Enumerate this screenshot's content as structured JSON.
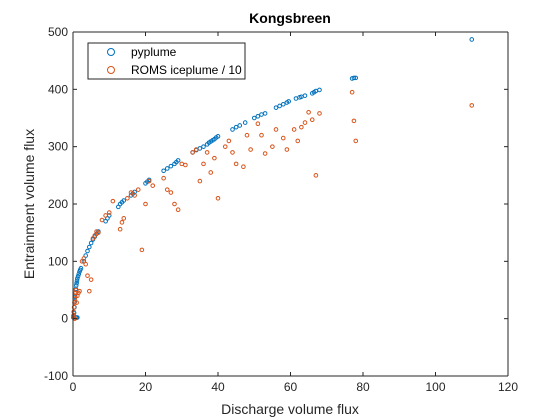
{
  "chart_data": {
    "type": "scatter",
    "title": "Kongsbreen",
    "xlabel": "Discharge volume flux",
    "ylabel": "Entrainment volume flux",
    "xlim": [
      0,
      120
    ],
    "ylim": [
      -100,
      500
    ],
    "xticks": [
      0,
      20,
      40,
      60,
      80,
      100,
      120
    ],
    "yticks": [
      -100,
      0,
      100,
      200,
      300,
      400,
      500
    ],
    "xtick_labels": [
      "0",
      "20",
      "40",
      "60",
      "80",
      "100",
      "120"
    ],
    "ytick_labels": [
      "-100",
      "0",
      "100",
      "200",
      "300",
      "400",
      "500"
    ],
    "grid": false,
    "legend_position": "top-left",
    "series": [
      {
        "name": "pyplume",
        "color": "#0072BD",
        "marker": "circle",
        "points": [
          [
            0.1,
            2
          ],
          [
            0.2,
            5
          ],
          [
            0.3,
            10
          ],
          [
            0.4,
            20
          ],
          [
            0.5,
            30
          ],
          [
            0.6,
            38
          ],
          [
            0.7,
            45
          ],
          [
            0.8,
            52
          ],
          [
            0.9,
            58
          ],
          [
            1.0,
            62
          ],
          [
            1.1,
            66
          ],
          [
            1.2,
            70
          ],
          [
            1.4,
            74
          ],
          [
            1.6,
            78
          ],
          [
            1.8,
            82
          ],
          [
            2.0,
            85
          ],
          [
            2.2,
            88
          ],
          [
            0.8,
            2
          ],
          [
            1.0,
            2
          ],
          [
            1.2,
            2
          ],
          [
            3.0,
            100
          ],
          [
            3.5,
            110
          ],
          [
            4.0,
            118
          ],
          [
            4.5,
            125
          ],
          [
            5.0,
            132
          ],
          [
            5.5,
            138
          ],
          [
            6.0,
            143
          ],
          [
            6.5,
            148
          ],
          [
            7.0,
            152
          ],
          [
            9.0,
            170
          ],
          [
            9.5,
            175
          ],
          [
            10.0,
            180
          ],
          [
            12.5,
            195
          ],
          [
            13.0,
            200
          ],
          [
            13.5,
            203
          ],
          [
            14.0,
            206
          ],
          [
            16.0,
            215
          ],
          [
            16.5,
            218
          ],
          [
            17.0,
            221
          ],
          [
            20.0,
            236
          ],
          [
            20.5,
            239
          ],
          [
            21.0,
            242
          ],
          [
            25.0,
            258
          ],
          [
            26.0,
            262
          ],
          [
            27.0,
            266
          ],
          [
            28.0,
            270
          ],
          [
            28.5,
            273
          ],
          [
            29.0,
            276
          ],
          [
            33.0,
            290
          ],
          [
            34.0,
            294
          ],
          [
            35.0,
            297
          ],
          [
            36.0,
            300
          ],
          [
            37.0,
            304
          ],
          [
            37.5,
            307
          ],
          [
            38.0,
            309
          ],
          [
            38.5,
            311
          ],
          [
            39.0,
            313
          ],
          [
            39.5,
            316
          ],
          [
            40.0,
            318
          ],
          [
            44.0,
            330
          ],
          [
            45.0,
            334
          ],
          [
            46.0,
            337
          ],
          [
            47.5,
            342
          ],
          [
            50.0,
            350
          ],
          [
            51.0,
            353
          ],
          [
            52.0,
            356
          ],
          [
            53.0,
            358
          ],
          [
            56.0,
            368
          ],
          [
            57.0,
            371
          ],
          [
            58.0,
            374
          ],
          [
            59.0,
            377
          ],
          [
            59.5,
            379
          ],
          [
            61.5,
            384
          ],
          [
            62.5,
            386
          ],
          [
            63.0,
            387
          ],
          [
            64.0,
            389
          ],
          [
            66.0,
            393
          ],
          [
            66.5,
            395
          ],
          [
            67.0,
            397
          ],
          [
            68.0,
            399
          ],
          [
            77.0,
            419
          ],
          [
            77.5,
            420
          ],
          [
            78.0,
            420
          ],
          [
            110.0,
            487
          ]
        ]
      },
      {
        "name": "ROMS iceplume / 10",
        "color": "#D95319",
        "marker": "circle",
        "points": [
          [
            0.1,
            5
          ],
          [
            0.2,
            12
          ],
          [
            0.3,
            20
          ],
          [
            0.4,
            28
          ],
          [
            0.5,
            35
          ],
          [
            0.6,
            40
          ],
          [
            0.7,
            45
          ],
          [
            0.8,
            50
          ],
          [
            0.3,
            2
          ],
          [
            0.5,
            0
          ],
          [
            1.0,
            28
          ],
          [
            1.2,
            40
          ],
          [
            1.5,
            45
          ],
          [
            1.8,
            48
          ],
          [
            2.5,
            100
          ],
          [
            3.0,
            105
          ],
          [
            3.5,
            95
          ],
          [
            4.0,
            75
          ],
          [
            4.5,
            48
          ],
          [
            5.0,
            68
          ],
          [
            5.5,
            140
          ],
          [
            6.0,
            145
          ],
          [
            6.5,
            152
          ],
          [
            7.0,
            150
          ],
          [
            8.0,
            172
          ],
          [
            9.0,
            180
          ],
          [
            10.0,
            185
          ],
          [
            11.0,
            205
          ],
          [
            13.0,
            156
          ],
          [
            13.5,
            168
          ],
          [
            14.0,
            175
          ],
          [
            15.0,
            210
          ],
          [
            16.0,
            220
          ],
          [
            17.0,
            215
          ],
          [
            18.0,
            225
          ],
          [
            19.0,
            120
          ],
          [
            20.0,
            200
          ],
          [
            21.0,
            240
          ],
          [
            22.0,
            232
          ],
          [
            25.0,
            245
          ],
          [
            26.0,
            225
          ],
          [
            27.0,
            220
          ],
          [
            28.0,
            200
          ],
          [
            29.0,
            190
          ],
          [
            30.0,
            270
          ],
          [
            31.0,
            268
          ],
          [
            33.0,
            290
          ],
          [
            34.0,
            295
          ],
          [
            35.0,
            240
          ],
          [
            36.0,
            270
          ],
          [
            37.0,
            290
          ],
          [
            38.0,
            255
          ],
          [
            39.0,
            280
          ],
          [
            40.0,
            210
          ],
          [
            42.0,
            300
          ],
          [
            43.0,
            310
          ],
          [
            44.0,
            290
          ],
          [
            45.0,
            270
          ],
          [
            47.0,
            265
          ],
          [
            48.0,
            320
          ],
          [
            49.0,
            295
          ],
          [
            51.0,
            340
          ],
          [
            52.0,
            320
          ],
          [
            53.0,
            288
          ],
          [
            55.0,
            300
          ],
          [
            56.0,
            330
          ],
          [
            58.0,
            315
          ],
          [
            59.0,
            295
          ],
          [
            61.0,
            330
          ],
          [
            62.0,
            310
          ],
          [
            63.0,
            334
          ],
          [
            64.0,
            342
          ],
          [
            65.0,
            360
          ],
          [
            66.0,
            347
          ],
          [
            67.0,
            250
          ],
          [
            68.0,
            358
          ],
          [
            77.0,
            395
          ],
          [
            77.5,
            345
          ],
          [
            78.0,
            310
          ],
          [
            110.0,
            372
          ]
        ]
      }
    ]
  }
}
